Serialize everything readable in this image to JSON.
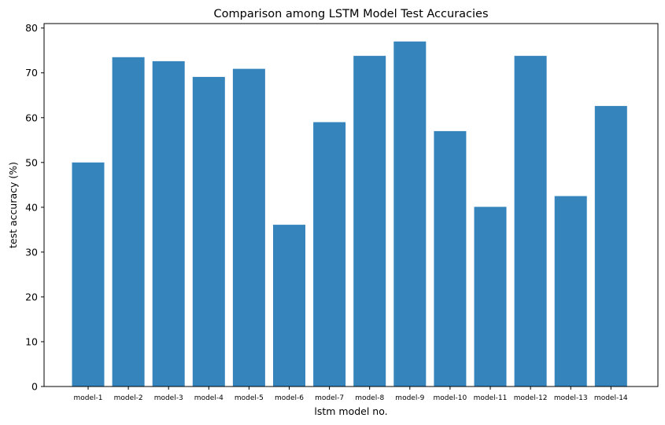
{
  "chart_data": {
    "type": "bar",
    "title": "Comparison among LSTM Model Test Accuracies",
    "xlabel": "lstm model no.",
    "ylabel": "test accuracy (%)",
    "categories": [
      "model-1",
      "model-2",
      "model-3",
      "model-4",
      "model-5",
      "model-6",
      "model-7",
      "model-8",
      "model-9",
      "model-10",
      "model-11",
      "model-12",
      "model-13",
      "model-14"
    ],
    "values": [
      50.0,
      73.5,
      72.6,
      69.1,
      70.9,
      36.1,
      59.0,
      73.8,
      77.0,
      57.0,
      40.1,
      73.8,
      42.5,
      62.6
    ],
    "ylim": [
      0,
      81
    ],
    "yticks": [
      0,
      10,
      20,
      30,
      40,
      50,
      60,
      70,
      80
    ],
    "bar_color": "#3584bb",
    "grid": false,
    "legend": "none"
  }
}
